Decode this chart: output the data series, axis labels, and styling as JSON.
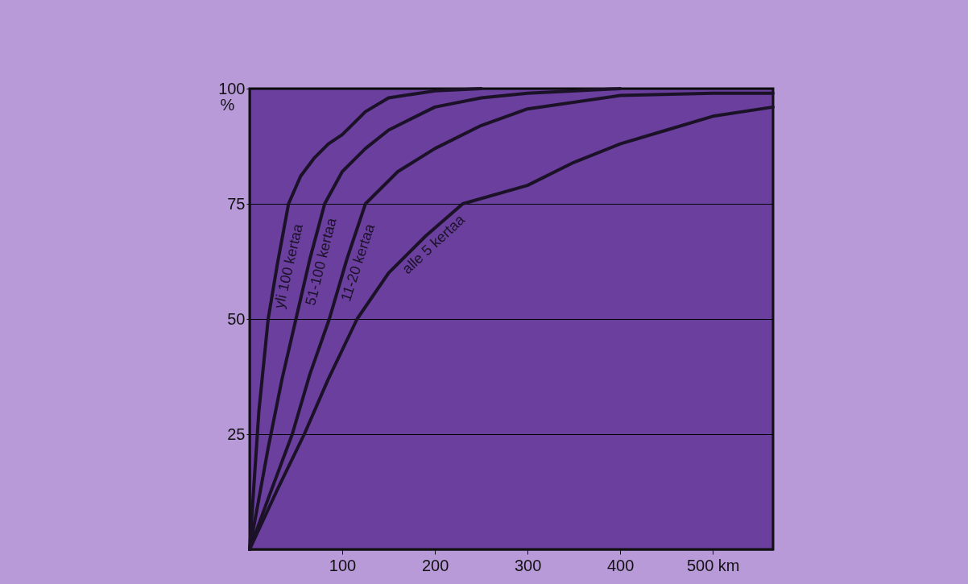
{
  "chart_data": {
    "type": "line",
    "ylabel": "%",
    "xlim": [
      0,
      565
    ],
    "ylim": [
      0,
      100
    ],
    "xticks": [
      100,
      200,
      300,
      {
        "value": 500,
        "label": "500 km"
      },
      400
    ],
    "yticks": [
      25,
      50,
      75,
      100
    ],
    "grid": "y",
    "line_style": "solid",
    "marker": "none",
    "series": [
      {
        "name": "yli 100 kertaa",
        "color": "#1c1228",
        "x": [
          0,
          10,
          20,
          30,
          42,
          55,
          70,
          85,
          100,
          125,
          150,
          200,
          250
        ],
        "values": [
          0,
          30,
          50,
          62,
          75,
          81,
          85,
          88,
          90,
          95,
          98,
          99.5,
          100
        ]
      },
      {
        "name": "51-100 kertaa",
        "color": "#1c1228",
        "x": [
          0,
          20,
          35,
          50,
          65,
          81,
          100,
          125,
          150,
          200,
          250,
          300,
          400
        ],
        "values": [
          0,
          22,
          37,
          50,
          63,
          75,
          82,
          87,
          91,
          96,
          98,
          99,
          100
        ]
      },
      {
        "name": "11-20 kertaa",
        "color": "#1c1228",
        "x": [
          0,
          20,
          46,
          65,
          86,
          105,
          125,
          160,
          200,
          250,
          300,
          400,
          500,
          565
        ],
        "values": [
          0,
          11,
          25,
          38,
          50,
          63,
          75,
          82,
          87,
          92,
          95.6,
          98.5,
          99,
          99
        ]
      },
      {
        "name": "alle 5 kertaa",
        "color": "#1c1228",
        "x": [
          0,
          30,
          59,
          85,
          116,
          150,
          190,
          230,
          300,
          350,
          400,
          450,
          500,
          565
        ],
        "values": [
          0,
          13,
          25,
          37,
          50,
          60,
          68,
          75,
          79,
          84,
          88,
          91,
          94,
          96
        ]
      }
    ]
  }
}
